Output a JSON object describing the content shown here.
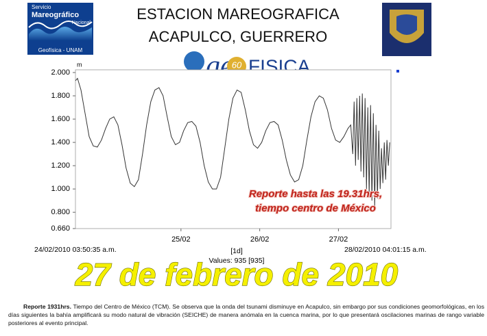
{
  "logos": {
    "left_lines": [
      "Servicio",
      "Mareográfico",
      "Nacional",
      "Geofísica - UNAM"
    ],
    "center_ge": "ge",
    "center_num": "60",
    "center_fisica": "FISICA"
  },
  "chart_data": {
    "type": "line",
    "title_lines": [
      "ESTACION MAREOGRAFICA",
      "ACAPULCO, GUERRERO"
    ],
    "y_unit": "m",
    "color": "#333333",
    "x": [
      24.16,
      24.186,
      24.23,
      24.282,
      24.334,
      24.386,
      24.438,
      24.49,
      24.543,
      24.595,
      24.647,
      24.699,
      24.751,
      24.803,
      24.856,
      24.908,
      24.96,
      25.012,
      25.064,
      25.117,
      25.169,
      25.221,
      25.273,
      25.325,
      25.377,
      25.43,
      25.482,
      25.534,
      25.586,
      25.638,
      25.69,
      25.743,
      25.795,
      25.847,
      25.899,
      25.951,
      26.003,
      26.056,
      26.108,
      26.16,
      26.212,
      26.264,
      26.317,
      26.369,
      26.421,
      26.473,
      26.525,
      26.577,
      26.63,
      26.682,
      26.734,
      26.786,
      26.838,
      26.89,
      26.943,
      26.995,
      27.047,
      27.099,
      27.151,
      27.203,
      27.256,
      27.308,
      27.36,
      27.412,
      27.464,
      27.517,
      27.569,
      27.621,
      27.656,
      27.682,
      27.699,
      27.717,
      27.734,
      27.751,
      27.769,
      27.786,
      27.803,
      27.821,
      27.838,
      27.856,
      27.873,
      27.89,
      27.908,
      27.925,
      27.943,
      27.96,
      27.977,
      27.995,
      28.012,
      28.03,
      28.047,
      28.064,
      28.082,
      28.099,
      28.116,
      28.134,
      28.151
    ],
    "values": [
      1.93,
      1.95,
      1.85,
      1.65,
      1.45,
      1.37,
      1.36,
      1.42,
      1.52,
      1.6,
      1.62,
      1.55,
      1.38,
      1.18,
      1.05,
      1.02,
      1.08,
      1.3,
      1.55,
      1.75,
      1.85,
      1.87,
      1.8,
      1.62,
      1.45,
      1.38,
      1.4,
      1.5,
      1.57,
      1.58,
      1.54,
      1.4,
      1.2,
      1.06,
      1.0,
      1.0,
      1.1,
      1.35,
      1.6,
      1.78,
      1.85,
      1.83,
      1.68,
      1.5,
      1.38,
      1.35,
      1.4,
      1.5,
      1.57,
      1.58,
      1.55,
      1.42,
      1.25,
      1.12,
      1.06,
      1.08,
      1.2,
      1.42,
      1.62,
      1.75,
      1.8,
      1.78,
      1.68,
      1.52,
      1.42,
      1.4,
      1.45,
      1.52,
      1.55,
      1.3,
      1.75,
      1.2,
      1.78,
      1.25,
      1.8,
      1.15,
      1.82,
      1.1,
      1.78,
      1.0,
      1.7,
      0.95,
      1.72,
      0.9,
      1.65,
      0.85,
      1.55,
      0.92,
      1.5,
      1.0,
      1.35,
      1.05,
      1.4,
      1.08,
      1.42,
      1.2,
      1.4
    ],
    "xlim": [
      24.16,
      28.167
    ],
    "xticks": [
      {
        "value": 25.5,
        "label": "25/02"
      },
      {
        "value": 26.5,
        "label": "26/02"
      },
      {
        "value": 27.5,
        "label": "27/02"
      }
    ],
    "ylim": [
      0.66,
      2.0
    ],
    "yticks": [
      {
        "value": 2.0,
        "label": "2.000"
      },
      {
        "value": 1.8,
        "label": "1.800"
      },
      {
        "value": 1.6,
        "label": "1.600"
      },
      {
        "value": 1.4,
        "label": "1.400"
      },
      {
        "value": 1.2,
        "label": "1.200"
      },
      {
        "value": 1.0,
        "label": "1.000"
      },
      {
        "value": 0.8,
        "label": "0.800"
      },
      {
        "value": 0.66,
        "label": "0.660"
      }
    ],
    "start_label": "24/02/2010 03:50:35 a.m.",
    "end_label": "28/02/2010 04:01:15 a.m.",
    "interval_label": "[1d]",
    "count_label": "Values: 935 [935]",
    "annotation_lines": [
      "Reporte hasta las 19.31hrs,",
      "tiempo centro de México"
    ]
  },
  "banner": "27 de febrero de 2010",
  "caption": {
    "lead": "Reporte 1931hrs.",
    "text": "Tiempo del Centro de México (TCM). Se observa que la onda del tsunami disminuye en Acapulco, sin embargo por sus condiciones geomorfológicas, en los días siguientes la bahía amplificará su modo natural de vibración (SEICHE) de manera anómala en la cuenca marina, por lo que presentará oscilaciones marinas de rango variable posteriores al evento principal."
  }
}
